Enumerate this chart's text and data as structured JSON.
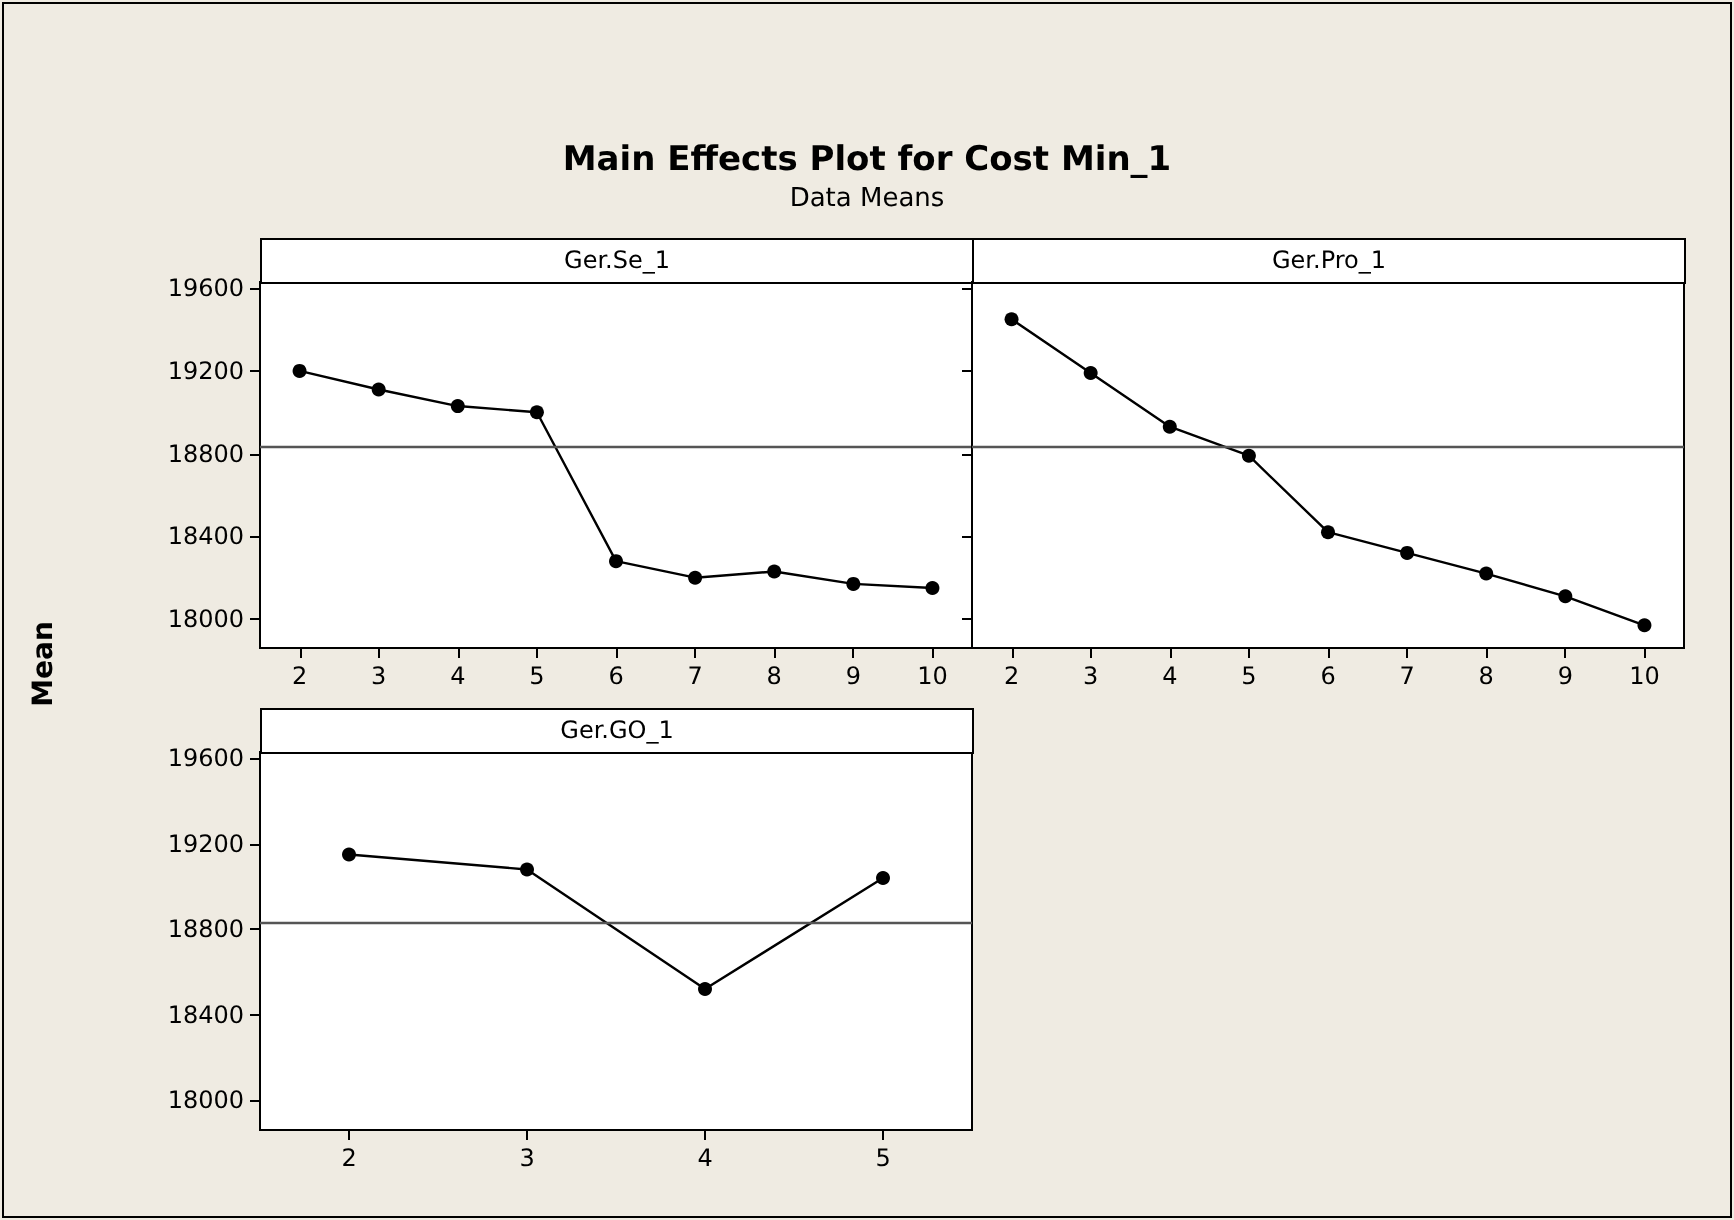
{
  "chart_data": [
    {
      "type": "other",
      "title": "Main Effects Plot for Cost Min_1",
      "subtitle": "Data Means",
      "ylabel": "Mean"
    },
    {
      "type": "line",
      "title": "Ger.Se_1",
      "categories": [
        "2",
        "3",
        "4",
        "5",
        "6",
        "7",
        "8",
        "9",
        "10"
      ],
      "values": [
        19200,
        19110,
        19030,
        19000,
        18280,
        18200,
        18230,
        18170,
        18150
      ],
      "color": "#000000",
      "marker": "circle",
      "ylim": [
        17860,
        19630
      ],
      "yticks": [
        18000,
        18400,
        18800,
        19200,
        19600
      ],
      "ref_lines": [
        {
          "axis": "y",
          "value": 18830,
          "color": "#555555"
        }
      ]
    },
    {
      "type": "line",
      "title": "Ger.Pro_1",
      "categories": [
        "2",
        "3",
        "4",
        "5",
        "6",
        "7",
        "8",
        "9",
        "10"
      ],
      "values": [
        19450,
        19190,
        18930,
        18790,
        18420,
        18320,
        18220,
        18110,
        17970
      ],
      "color": "#000000",
      "marker": "circle",
      "ylim": [
        17860,
        19630
      ],
      "yticks": [
        18000,
        18400,
        18800,
        19200,
        19600
      ],
      "tick_labels": "x",
      "ref_lines": [
        {
          "axis": "y",
          "value": 18830,
          "color": "#555555"
        }
      ]
    },
    {
      "type": "line",
      "title": "Ger.GO_1",
      "categories": [
        "2",
        "3",
        "4",
        "5"
      ],
      "values": [
        19150,
        19080,
        18520,
        19040
      ],
      "color": "#000000",
      "marker": "circle",
      "ylim": [
        17860,
        19630
      ],
      "yticks": [
        18000,
        18400,
        18800,
        19200,
        19600
      ],
      "ref_lines": [
        {
          "axis": "y",
          "value": 18830,
          "color": "#555555"
        }
      ]
    }
  ]
}
